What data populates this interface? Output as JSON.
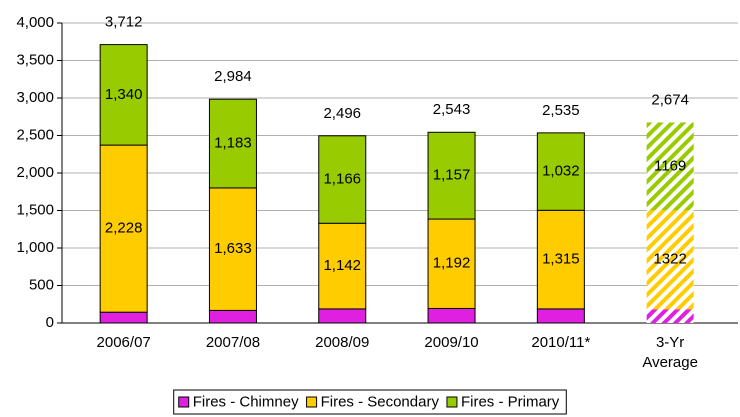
{
  "chart_data": {
    "type": "stacked-bar",
    "categories": [
      "2006/07",
      "2007/08",
      "2008/09",
      "2009/10",
      "2010/11*",
      "3-Yr Average"
    ],
    "series": [
      {
        "name": "Fires - Chimney",
        "color": "#e020e0",
        "values": [
          144,
          168,
          188,
          194,
          188,
          183
        ]
      },
      {
        "name": "Fires - Secondary",
        "color": "#ffcc00",
        "values": [
          2228,
          1633,
          1142,
          1192,
          1315,
          1322
        ],
        "value_labels": [
          "2,228",
          "1,633",
          "1,142",
          "1,192",
          "1,315",
          "1322"
        ]
      },
      {
        "name": "Fires - Primary",
        "color": "#99cc00",
        "values": [
          1340,
          1183,
          1166,
          1157,
          1032,
          1169
        ],
        "value_labels": [
          "1,340",
          "1,183",
          "1,166",
          "1,157",
          "1,032",
          "1169"
        ]
      }
    ],
    "totals": {
      "values": [
        3712,
        2984,
        2496,
        2543,
        2535,
        2674
      ],
      "value_labels": [
        "3,712",
        "2,984",
        "2,496",
        "2,543",
        "2,535",
        "2,674"
      ]
    },
    "hatched": [
      false,
      false,
      false,
      false,
      false,
      true
    ],
    "ylim": [
      0,
      4000
    ],
    "yticks": [
      0,
      500,
      {
        "value": 1000,
        "label": "1,000"
      },
      {
        "value": 1500,
        "label": "1,500"
      },
      {
        "value": 2000,
        "label": "2,000"
      },
      {
        "value": 2500,
        "label": "2,500"
      },
      {
        "value": 3000,
        "label": "3,000"
      },
      {
        "value": 3500,
        "label": "3,500"
      },
      {
        "value": 4000,
        "label": "4,000"
      }
    ],
    "grid": true,
    "legend": "bottom"
  }
}
